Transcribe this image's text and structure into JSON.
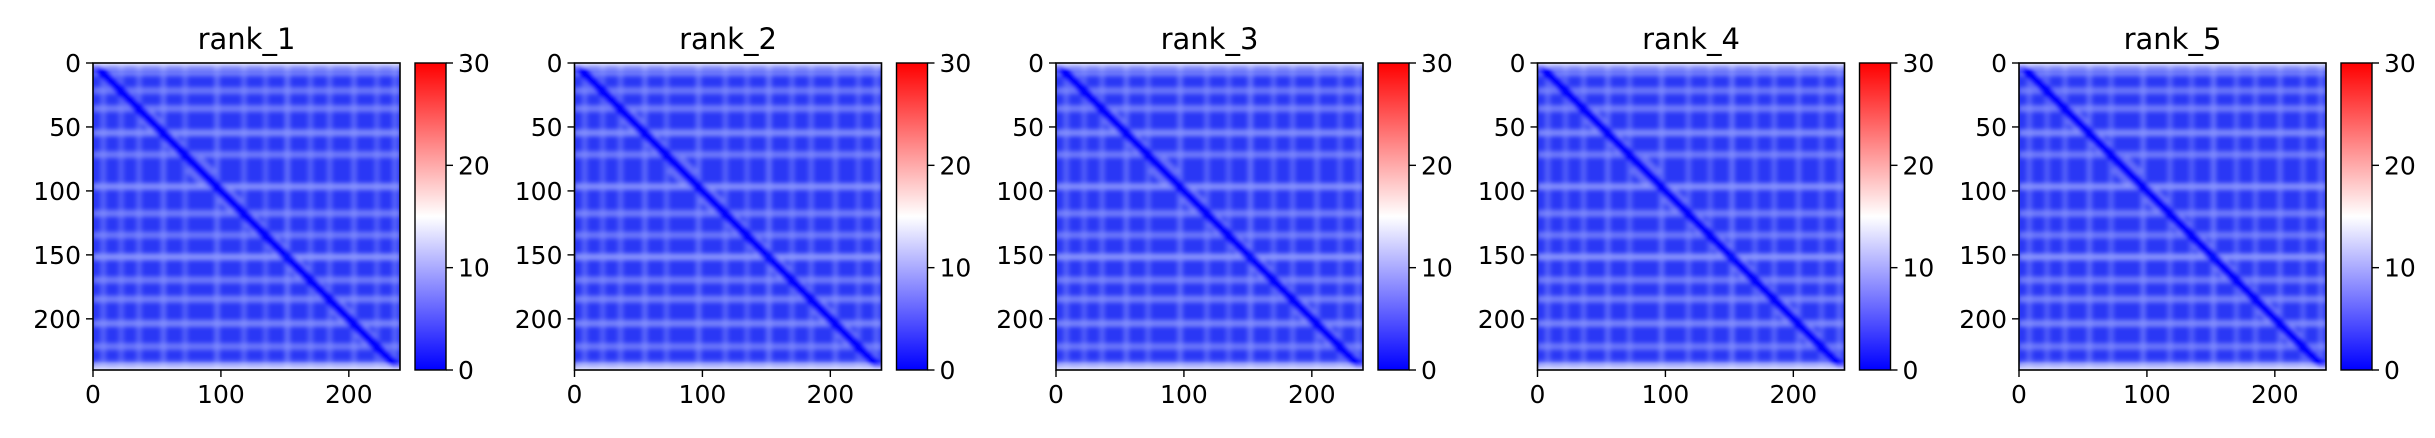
{
  "chart_data": [
    {
      "type": "heatmap",
      "title": "rank_1",
      "xlim": [
        0,
        240
      ],
      "ylim": [
        0,
        240
      ],
      "y_inverted": true,
      "x_ticks": [
        "0",
        "100",
        "200"
      ],
      "y_ticks": [
        "0",
        "50",
        "100",
        "150",
        "200"
      ],
      "colorbar": {
        "vmin": 0,
        "vmax": 30,
        "ticks": [
          "0",
          "10",
          "20",
          "30"
        ],
        "colormap": "bwr"
      },
      "grid": false
    },
    {
      "type": "heatmap",
      "title": "rank_2",
      "xlim": [
        0,
        240
      ],
      "ylim": [
        0,
        240
      ],
      "y_inverted": true,
      "x_ticks": [
        "0",
        "100",
        "200"
      ],
      "y_ticks": [
        "0",
        "50",
        "100",
        "150",
        "200"
      ],
      "colorbar": {
        "vmin": 0,
        "vmax": 30,
        "ticks": [
          "0",
          "10",
          "20",
          "30"
        ],
        "colormap": "bwr"
      },
      "grid": false
    },
    {
      "type": "heatmap",
      "title": "rank_3",
      "xlim": [
        0,
        240
      ],
      "ylim": [
        0,
        240
      ],
      "y_inverted": true,
      "x_ticks": [
        "0",
        "100",
        "200"
      ],
      "y_ticks": [
        "0",
        "50",
        "100",
        "150",
        "200"
      ],
      "colorbar": {
        "vmin": 0,
        "vmax": 30,
        "ticks": [
          "0",
          "10",
          "20",
          "30"
        ],
        "colormap": "bwr"
      },
      "grid": false
    },
    {
      "type": "heatmap",
      "title": "rank_4",
      "xlim": [
        0,
        240
      ],
      "ylim": [
        0,
        240
      ],
      "y_inverted": true,
      "x_ticks": [
        "0",
        "100",
        "200"
      ],
      "y_ticks": [
        "0",
        "50",
        "100",
        "150",
        "200"
      ],
      "colorbar": {
        "vmin": 0,
        "vmax": 30,
        "ticks": [
          "0",
          "10",
          "20",
          "30"
        ],
        "colormap": "bwr"
      },
      "grid": false
    },
    {
      "type": "heatmap",
      "title": "rank_5",
      "xlim": [
        0,
        240
      ],
      "ylim": [
        0,
        240
      ],
      "y_inverted": true,
      "x_ticks": [
        "0",
        "100",
        "200"
      ],
      "y_ticks": [
        "0",
        "50",
        "100",
        "150",
        "200"
      ],
      "colorbar": {
        "vmin": 0,
        "vmax": 30,
        "ticks": [
          "0",
          "10",
          "20",
          "30"
        ],
        "colormap": "bwr"
      },
      "grid": false
    }
  ],
  "colors": {
    "low": "#0000ff",
    "mid": "#ffffff",
    "high": "#ff0000",
    "axis": "#000000"
  }
}
